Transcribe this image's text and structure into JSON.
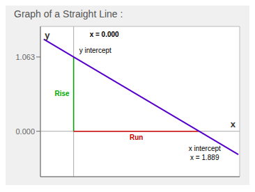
{
  "chart_data": {
    "type": "line",
    "title": "Graph of a Straight Line :",
    "x_label": "x",
    "y_label": "y",
    "xlim": [
      -0.5,
      2.5
    ],
    "ylim": [
      -0.65,
      1.5
    ],
    "yticks": [
      1.063,
      {
        "value": 0,
        "label": "0.000"
      }
    ],
    "tick_labels": "y",
    "annotations": [
      "x = 0.000",
      "y intercept",
      "x intercept",
      "x = 1.889"
    ],
    "series": [
      {
        "name": "Rise",
        "color": "#00aa00",
        "x": [
          0,
          0
        ],
        "values": [
          0,
          1.063
        ]
      },
      {
        "name": "Run",
        "color": "#cc0000",
        "x": [
          0,
          1.889
        ],
        "values": [
          0,
          0
        ]
      },
      {
        "color": "#5500cc",
        "x": [
          -0.45,
          0,
          1.889,
          2.48
        ],
        "values": [
          1.3162292,
          1.063,
          0,
          -0.3325744
        ]
      }
    ]
  }
}
